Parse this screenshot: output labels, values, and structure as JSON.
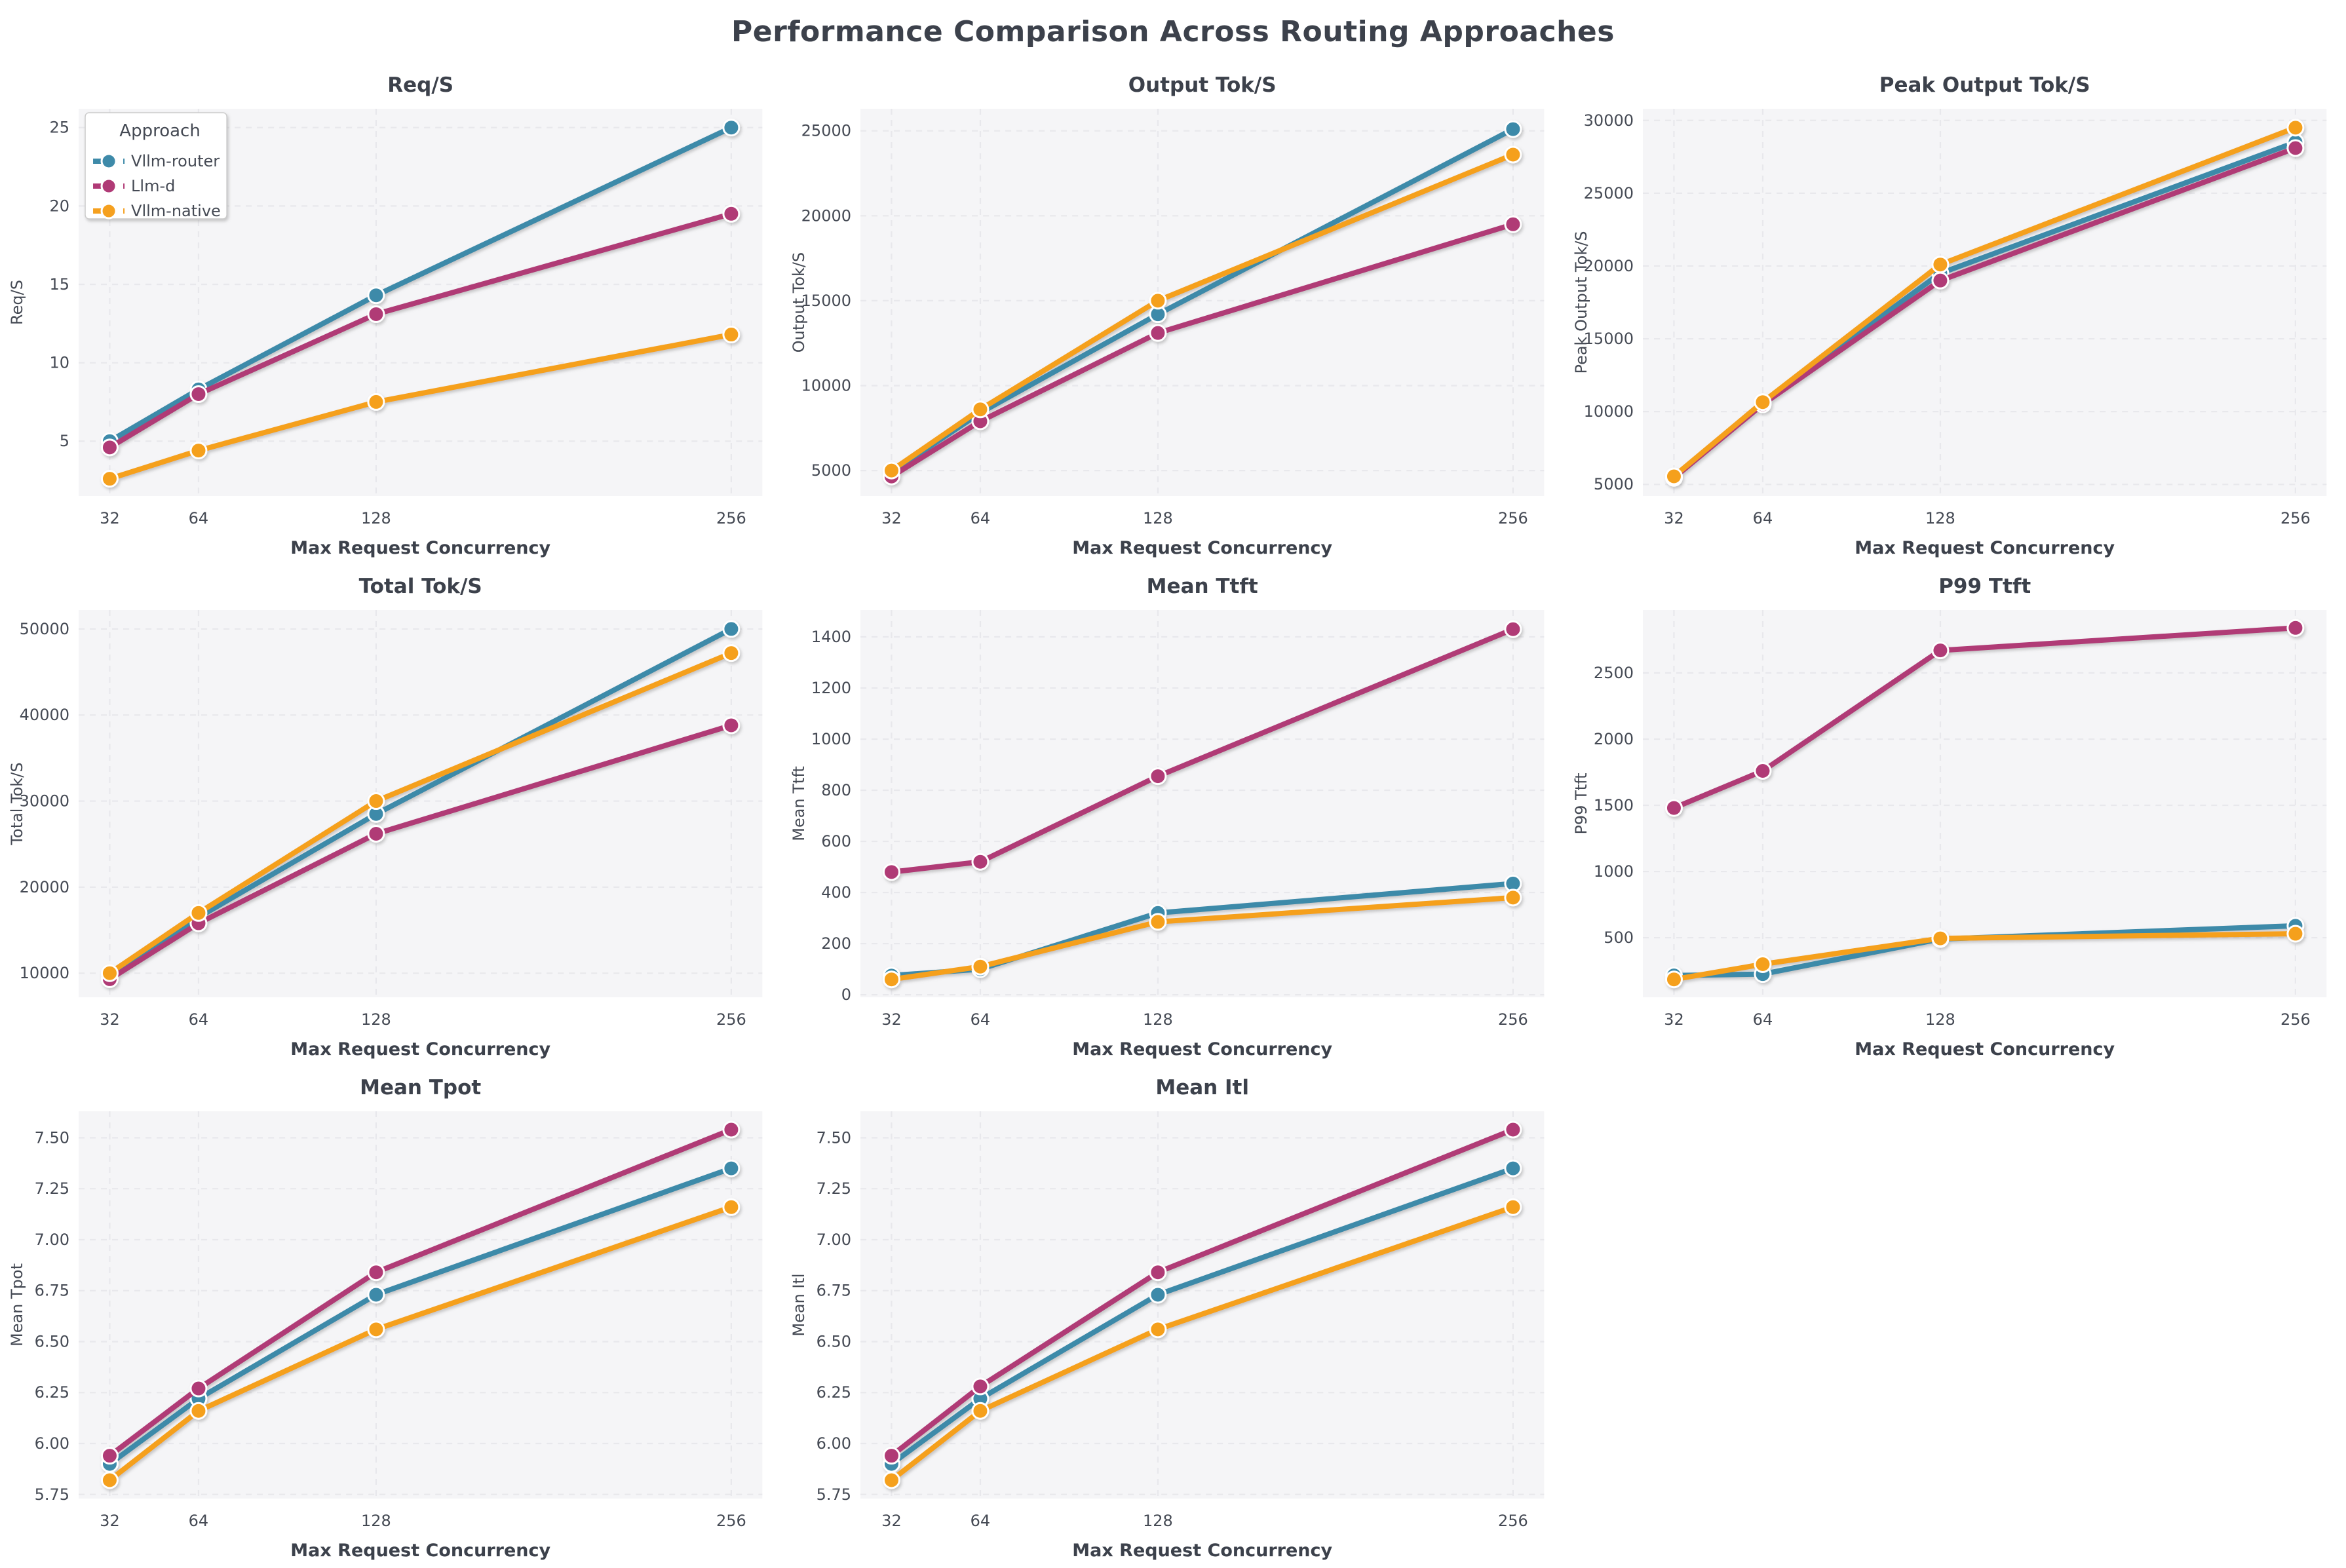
{
  "page_title": "Performance Comparison Across Routing Approaches",
  "figure": {
    "background": "#ffffff",
    "plot_background": "#f5f5f7",
    "grid_color": "#e8e8ec",
    "title_color": "#3c414b",
    "tick_color": "#454a54",
    "legend_border": "#cccccc"
  },
  "legend": {
    "title": "Approach",
    "items": [
      {
        "label": "Vllm-router",
        "color": "#3e8aa9"
      },
      {
        "label": "Llm-d",
        "color": "#b03a76"
      },
      {
        "label": "Vllm-native",
        "color": "#f5a01f"
      }
    ]
  },
  "chart_data": [
    {
      "type": "line",
      "slug": "req-s",
      "title": "Req/S",
      "ylabel": "Req/S",
      "xlabel": "Max Request Concurrency",
      "show_legend": true,
      "x": [
        32,
        64,
        128,
        256
      ],
      "xtick_labels": [
        "32",
        "64",
        "128",
        "256"
      ],
      "xlim": [
        20.8,
        267.2
      ],
      "ylim": [
        1.5,
        26.2
      ],
      "yticks": [
        5,
        10,
        15,
        20,
        25
      ],
      "ytick_labels": [
        "5",
        "10",
        "15",
        "20",
        "25"
      ],
      "series": [
        {
          "name": "Vllm-router",
          "values": [
            5.0,
            8.3,
            14.3,
            25.0
          ]
        },
        {
          "name": "Llm-d",
          "values": [
            4.6,
            8.0,
            13.1,
            19.5
          ]
        },
        {
          "name": "Vllm-native",
          "values": [
            2.6,
            4.4,
            7.5,
            11.8
          ]
        }
      ]
    },
    {
      "type": "line",
      "slug": "output-tok-s",
      "title": "Output Tok/S",
      "ylabel": "Output Tok/S",
      "xlabel": "Max Request Concurrency",
      "show_legend": false,
      "x": [
        32,
        64,
        128,
        256
      ],
      "xtick_labels": [
        "32",
        "64",
        "128",
        "256"
      ],
      "xlim": [
        20.8,
        267.2
      ],
      "ylim": [
        3500,
        26300
      ],
      "yticks": [
        5000,
        10000,
        15000,
        20000,
        25000
      ],
      "ytick_labels": [
        "5000",
        "10000",
        "15000",
        "20000",
        "25000"
      ],
      "series": [
        {
          "name": "Vllm-router",
          "values": [
            4900,
            8400,
            14200,
            25100
          ]
        },
        {
          "name": "Llm-d",
          "values": [
            4650,
            7900,
            13100,
            19500
          ]
        },
        {
          "name": "Vllm-native",
          "values": [
            5000,
            8600,
            15000,
            23600
          ]
        }
      ]
    },
    {
      "type": "line",
      "slug": "peak-output-tok-s",
      "title": "Peak Output Tok/S",
      "ylabel": "Peak Output Tok/S",
      "xlabel": "Max Request Concurrency",
      "show_legend": false,
      "x": [
        32,
        64,
        128,
        256
      ],
      "xtick_labels": [
        "32",
        "64",
        "128",
        "256"
      ],
      "xlim": [
        20.8,
        267.2
      ],
      "ylim": [
        4200,
        30800
      ],
      "yticks": [
        5000,
        10000,
        15000,
        20000,
        25000,
        30000
      ],
      "ytick_labels": [
        "5000",
        "10000",
        "15000",
        "20000",
        "25000",
        "30000"
      ],
      "series": [
        {
          "name": "Vllm-router",
          "values": [
            5500,
            10600,
            19500,
            28500
          ]
        },
        {
          "name": "Llm-d",
          "values": [
            5450,
            10500,
            19000,
            28100
          ]
        },
        {
          "name": "Vllm-native",
          "values": [
            5550,
            10650,
            20100,
            29500
          ]
        }
      ]
    },
    {
      "type": "line",
      "slug": "total-tok-s",
      "title": "Total Tok/S",
      "ylabel": "Total Tok/S",
      "xlabel": "Max Request Concurrency",
      "show_legend": false,
      "x": [
        32,
        64,
        128,
        256
      ],
      "xtick_labels": [
        "32",
        "64",
        "128",
        "256"
      ],
      "xlim": [
        20.8,
        267.2
      ],
      "ylim": [
        7200,
        52200
      ],
      "yticks": [
        10000,
        20000,
        30000,
        40000,
        50000
      ],
      "ytick_labels": [
        "10000",
        "20000",
        "30000",
        "40000",
        "50000"
      ],
      "series": [
        {
          "name": "Vllm-router",
          "values": [
            9900,
            16500,
            28500,
            50000
          ]
        },
        {
          "name": "Llm-d",
          "values": [
            9300,
            15800,
            26200,
            38800
          ]
        },
        {
          "name": "Vllm-native",
          "values": [
            10000,
            17000,
            30000,
            47200
          ]
        }
      ]
    },
    {
      "type": "line",
      "slug": "mean-ttft",
      "title": "Mean Ttft",
      "ylabel": "Mean Ttft",
      "xlabel": "Max Request Concurrency",
      "show_legend": false,
      "x": [
        32,
        64,
        128,
        256
      ],
      "xtick_labels": [
        "32",
        "64",
        "128",
        "256"
      ],
      "xlim": [
        20.8,
        267.2
      ],
      "ylim": [
        -10,
        1505
      ],
      "yticks": [
        0,
        200,
        400,
        600,
        800,
        1000,
        1200,
        1400
      ],
      "ytick_labels": [
        "0",
        "200",
        "400",
        "600",
        "800",
        "1000",
        "1200",
        "1400"
      ],
      "series": [
        {
          "name": "Vllm-router",
          "values": [
            75,
            100,
            320,
            435
          ]
        },
        {
          "name": "Llm-d",
          "values": [
            480,
            520,
            855,
            1430
          ]
        },
        {
          "name": "Vllm-native",
          "values": [
            60,
            110,
            285,
            380
          ]
        }
      ]
    },
    {
      "type": "line",
      "slug": "p99-ttft",
      "title": "P99 Ttft",
      "ylabel": "P99 Ttft",
      "xlabel": "Max Request Concurrency",
      "show_legend": false,
      "x": [
        32,
        64,
        128,
        256
      ],
      "xtick_labels": [
        "32",
        "64",
        "128",
        "256"
      ],
      "xlim": [
        20.8,
        267.2
      ],
      "ylim": [
        50,
        2975
      ],
      "yticks": [
        500,
        1000,
        1500,
        2000,
        2500
      ],
      "ytick_labels": [
        "500",
        "1000",
        "1500",
        "2000",
        "2500"
      ],
      "series": [
        {
          "name": "Vllm-router",
          "values": [
            215,
            225,
            490,
            590
          ]
        },
        {
          "name": "Llm-d",
          "values": [
            1480,
            1760,
            2670,
            2840
          ]
        },
        {
          "name": "Vllm-native",
          "values": [
            185,
            300,
            495,
            530
          ]
        }
      ]
    },
    {
      "type": "line",
      "slug": "mean-tpot",
      "title": "Mean Tpot",
      "ylabel": "Mean Tpot",
      "xlabel": "Max Request Concurrency",
      "show_legend": false,
      "x": [
        32,
        64,
        128,
        256
      ],
      "xtick_labels": [
        "32",
        "64",
        "128",
        "256"
      ],
      "xlim": [
        20.8,
        267.2
      ],
      "ylim": [
        5.73,
        7.63
      ],
      "yticks": [
        5.75,
        6.0,
        6.25,
        6.5,
        6.75,
        7.0,
        7.25,
        7.5
      ],
      "ytick_labels": [
        "5.75",
        "6.00",
        "6.25",
        "6.50",
        "6.75",
        "7.00",
        "7.25",
        "7.50"
      ],
      "series": [
        {
          "name": "Vllm-router",
          "values": [
            5.9,
            6.22,
            6.73,
            7.35
          ]
        },
        {
          "name": "Llm-d",
          "values": [
            5.94,
            6.27,
            6.84,
            7.54
          ]
        },
        {
          "name": "Vllm-native",
          "values": [
            5.82,
            6.16,
            6.56,
            7.16
          ]
        }
      ]
    },
    {
      "type": "line",
      "slug": "mean-itl",
      "title": "Mean Itl",
      "ylabel": "Mean Itl",
      "xlabel": "Max Request Concurrency",
      "show_legend": false,
      "x": [
        32,
        64,
        128,
        256
      ],
      "xtick_labels": [
        "32",
        "64",
        "128",
        "256"
      ],
      "xlim": [
        20.8,
        267.2
      ],
      "ylim": [
        5.73,
        7.63
      ],
      "yticks": [
        5.75,
        6.0,
        6.25,
        6.5,
        6.75,
        7.0,
        7.25,
        7.5
      ],
      "ytick_labels": [
        "5.75",
        "6.00",
        "6.25",
        "6.50",
        "6.75",
        "7.00",
        "7.25",
        "7.50"
      ],
      "series": [
        {
          "name": "Vllm-router",
          "values": [
            5.9,
            6.22,
            6.73,
            7.35
          ]
        },
        {
          "name": "Llm-d",
          "values": [
            5.94,
            6.28,
            6.84,
            7.54
          ]
        },
        {
          "name": "Vllm-native",
          "values": [
            5.82,
            6.16,
            6.56,
            7.16
          ]
        }
      ]
    }
  ]
}
